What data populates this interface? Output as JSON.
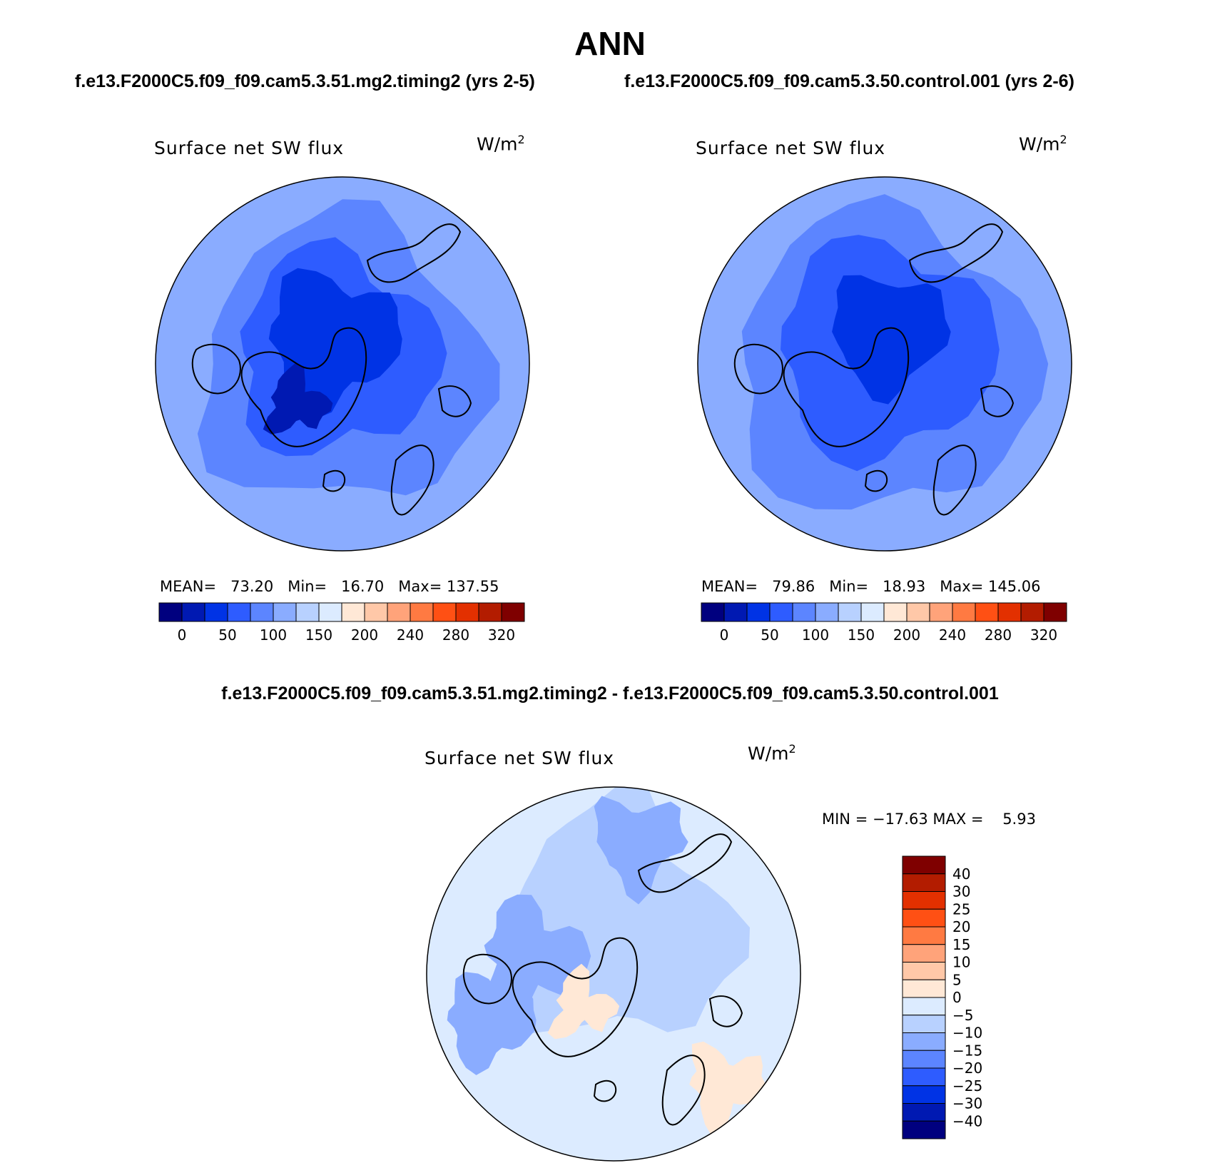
{
  "title": "ANN",
  "panels": [
    {
      "case_title": "f.e13.F2000C5.f09_f09.cam5.3.51.mg2.timing2 (yrs 2-5)",
      "variable": "Surface net SW flux",
      "units_base": "W/m",
      "units_exp": "2",
      "stats": {
        "mean_label": "MEAN=",
        "mean": "73.20",
        "min_label": "Min=",
        "min": "16.70",
        "max_label": "Max=",
        "max": "137.55"
      }
    },
    {
      "case_title": "f.e13.F2000C5.f09_f09.cam5.3.50.control.001 (yrs 2-6)",
      "variable": "Surface net SW flux",
      "units_base": "W/m",
      "units_exp": "2",
      "stats": {
        "mean_label": "MEAN=",
        "mean": "79.86",
        "min_label": "Min=",
        "min": "18.93",
        "max_label": "Max=",
        "max": "145.06"
      }
    }
  ],
  "diff_panel": {
    "title": "f.e13.F2000C5.f09_f09.cam5.3.51.mg2.timing2 - f.e13.F2000C5.f09_f09.cam5.3.50.control.001",
    "variable": "Surface net SW flux",
    "units_base": "W/m",
    "units_exp": "2",
    "minmax": "MIN = −17.63 MAX =    5.93"
  },
  "chart_data": [
    {
      "type": "heatmap",
      "projection": "north-polar-stereographic",
      "variable": "Surface net SW flux",
      "units": "W/m2",
      "mean": 73.2,
      "min": 16.7,
      "max": 137.55,
      "colorbar": {
        "tick_labels": [
          "0",
          "50",
          "100",
          "150",
          "200",
          "240",
          "280",
          "320"
        ],
        "colors": [
          "#00007f",
          "#0019b2",
          "#0033e5",
          "#2e5cff",
          "#5c85ff",
          "#8aacff",
          "#b8d1ff",
          "#dcebff",
          "#ffe8d6",
          "#ffc8a8",
          "#ffa37a",
          "#ff7a42",
          "#ff5014",
          "#e33000",
          "#b31c00",
          "#7f0000"
        ]
      }
    },
    {
      "type": "heatmap",
      "projection": "north-polar-stereographic",
      "variable": "Surface net SW flux",
      "units": "W/m2",
      "mean": 79.86,
      "min": 18.93,
      "max": 145.06,
      "colorbar": {
        "tick_labels": [
          "0",
          "50",
          "100",
          "150",
          "200",
          "240",
          "280",
          "320"
        ],
        "colors": [
          "#00007f",
          "#0019b2",
          "#0033e5",
          "#2e5cff",
          "#5c85ff",
          "#8aacff",
          "#b8d1ff",
          "#dcebff",
          "#ffe8d6",
          "#ffc8a8",
          "#ffa37a",
          "#ff7a42",
          "#ff5014",
          "#e33000",
          "#b31c00",
          "#7f0000"
        ]
      }
    },
    {
      "type": "heatmap",
      "projection": "north-polar-stereographic",
      "variable": "Surface net SW flux",
      "units": "W/m2",
      "min": -17.63,
      "max": 5.93,
      "colorbar": {
        "orientation": "vertical",
        "tick_labels": [
          "40",
          "30",
          "25",
          "20",
          "15",
          "10",
          "5",
          "0",
          "−5",
          "−10",
          "−15",
          "−20",
          "−25",
          "−30",
          "−40"
        ],
        "colors": [
          "#7f0000",
          "#b31c00",
          "#e33000",
          "#ff5014",
          "#ff7a42",
          "#ffa37a",
          "#ffc8a8",
          "#ffe8d6",
          "#dcebff",
          "#b8d1ff",
          "#8aacff",
          "#5c85ff",
          "#2e5cff",
          "#0033e5",
          "#0019b2",
          "#00007f"
        ]
      }
    }
  ]
}
